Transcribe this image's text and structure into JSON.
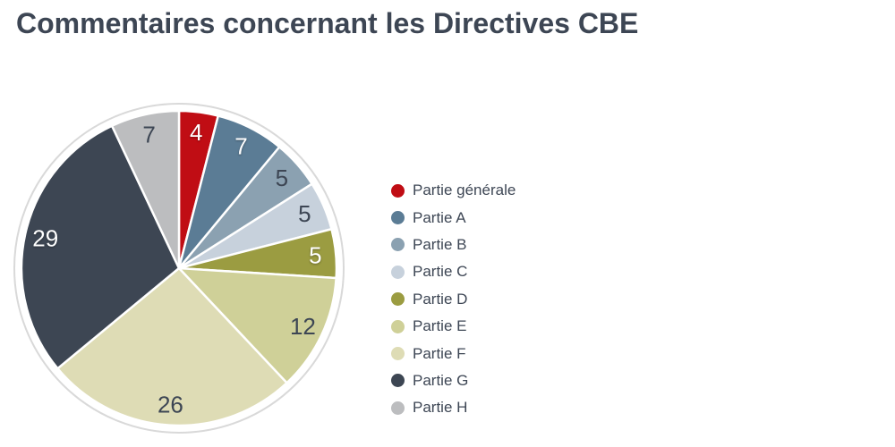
{
  "title": "Commentaires concernant les Directives CBE",
  "chart_data": {
    "type": "pie",
    "title": "Commentaires concernant les Directives CBE",
    "categories": [
      "Partie générale",
      "Partie A",
      "Partie B",
      "Partie C",
      "Partie D",
      "Partie E",
      "Partie F",
      "Partie G",
      "Partie H"
    ],
    "values": [
      4,
      7,
      5,
      5,
      5,
      12,
      26,
      29,
      7
    ],
    "total": 100,
    "colors": [
      "#c00d14",
      "#5b7c95",
      "#8ba1b1",
      "#c7d1dc",
      "#9b9c41",
      "#cfd098",
      "#dedcb5",
      "#3d4653",
      "#bcbdbf"
    ],
    "label_colors": [
      "#ffffff",
      "#ffffff",
      "#3d4654",
      "#3d4654",
      "#ffffff",
      "#3d4654",
      "#3d4654",
      "#ffffff",
      "#3d4654"
    ],
    "data_labels": "values",
    "start_angle_deg": 0,
    "direction": "clockwise",
    "legend_position": "right",
    "ring_color": "#d9d9d9",
    "slice_border_color": "#ffffff",
    "text_color": "#3d4654"
  }
}
